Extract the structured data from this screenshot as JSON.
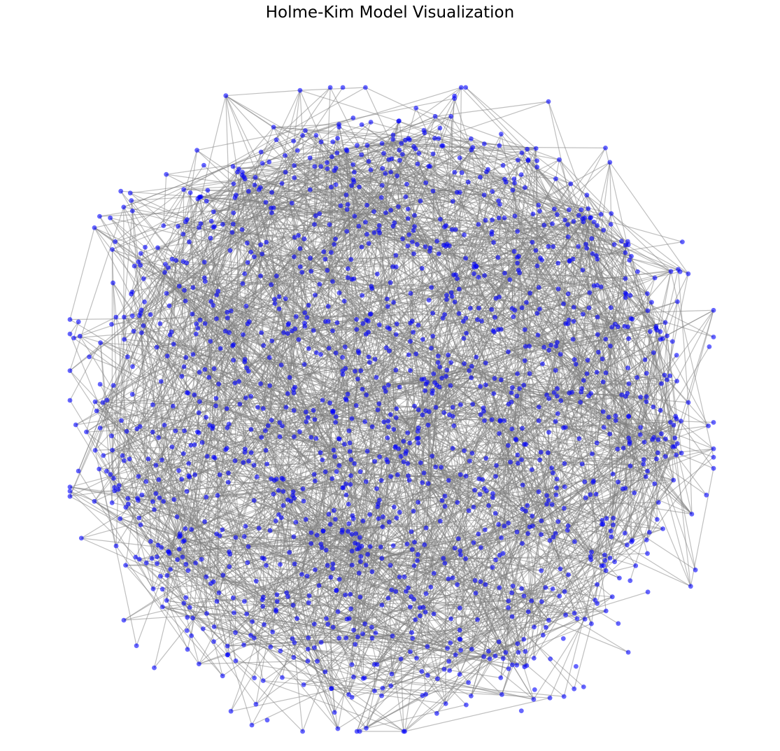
{
  "title": "Holme-Kim Model Visualization",
  "colors": {
    "background": "#ffffff",
    "node_fill": "#0000ff",
    "node_opacity": 0.6,
    "edge": "#808080",
    "edge_opacity": 0.5
  },
  "graph": {
    "model": "Holme-Kim",
    "node_shape": "circle",
    "axis_visible": false
  }
}
